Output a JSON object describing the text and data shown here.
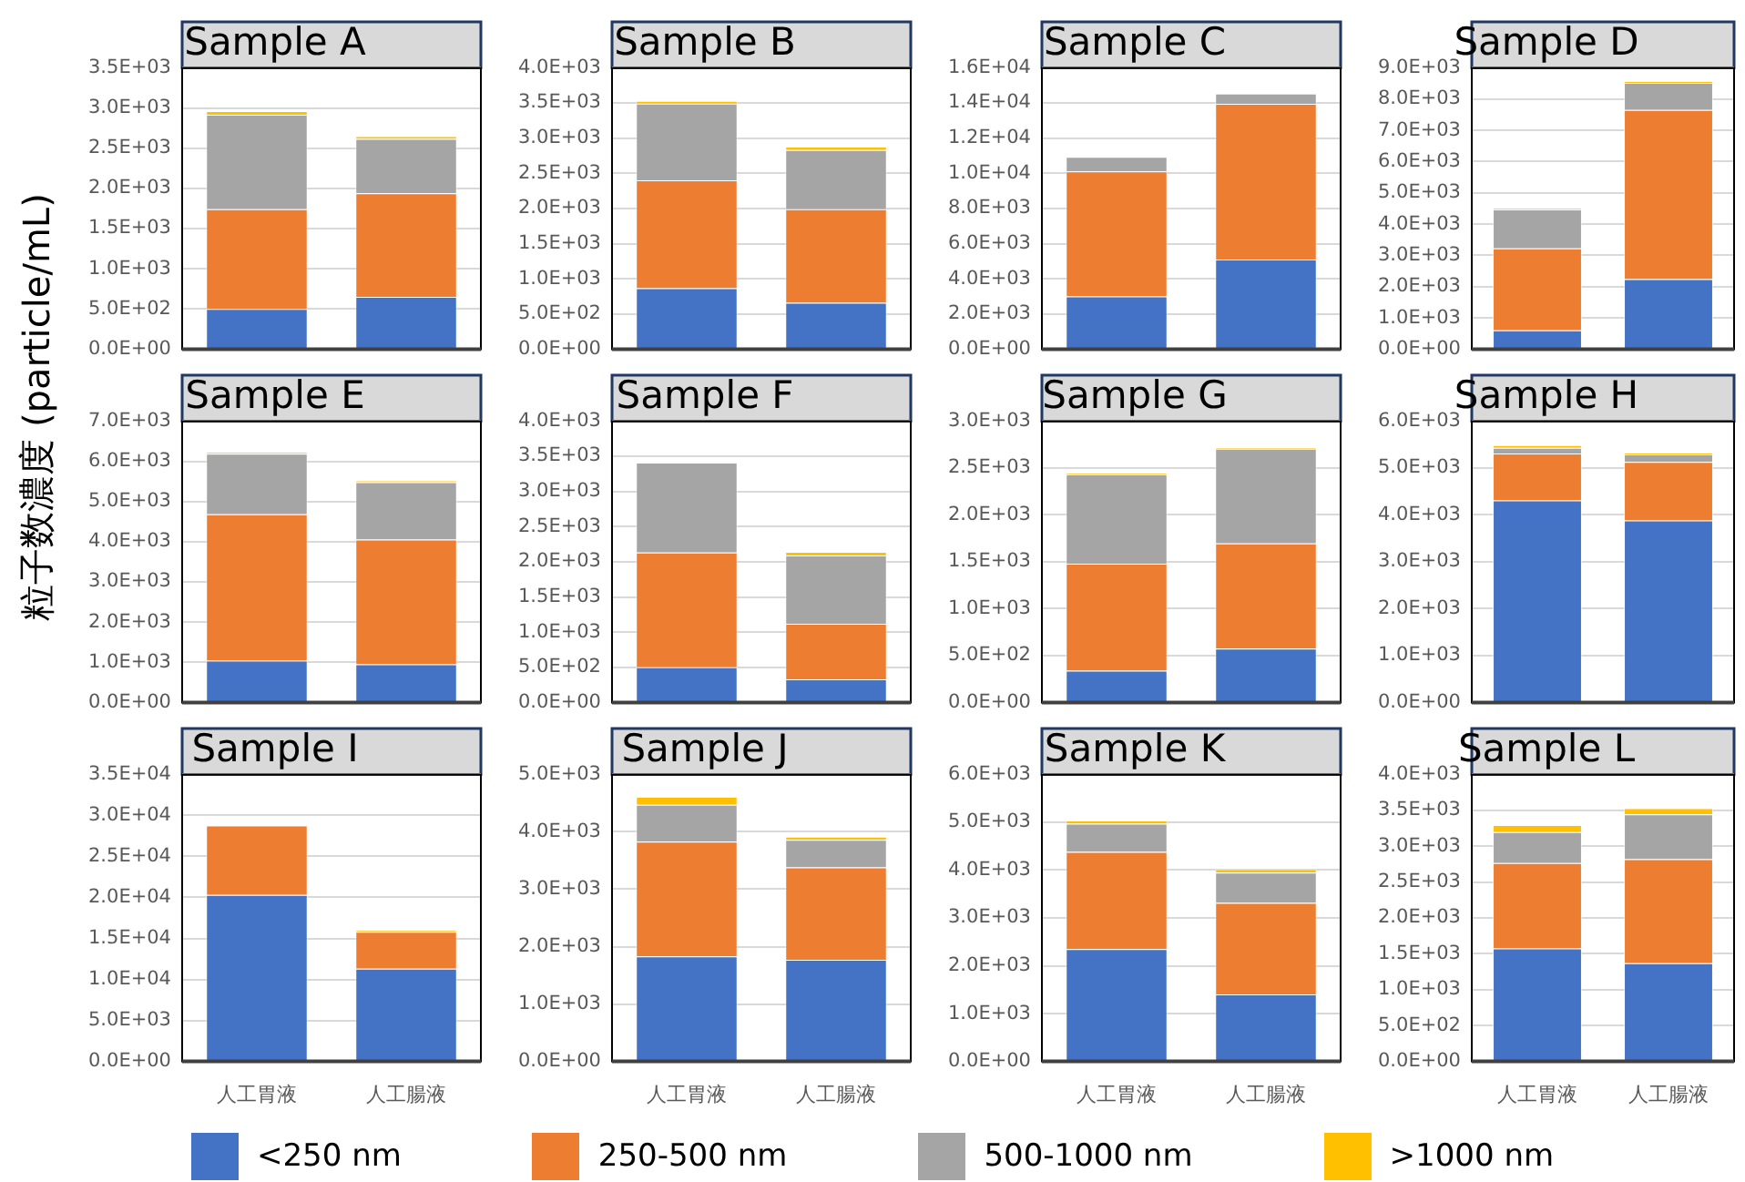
{
  "chart_data": [
    {
      "type": "bar",
      "title": "Sample A",
      "categories": [
        "人工胃液",
        "人工腸液"
      ],
      "stacked": true,
      "grid": "y",
      "legend": "bottom",
      "tick_labels": "y",
      "ylim": [
        0,
        3500
      ],
      "yticks": [
        {
          "value": 0,
          "label": "0.0E+00"
        },
        {
          "value": 500,
          "label": "5.0E+02"
        },
        {
          "value": 1000,
          "label": "1.0E+03"
        },
        {
          "value": 1500,
          "label": "1.5E+03"
        },
        {
          "value": 2000,
          "label": "2.0E+03"
        },
        {
          "value": 2500,
          "label": "2.5E+03"
        },
        {
          "value": 3000,
          "label": "3.0E+03"
        },
        {
          "value": 3500,
          "label": "3.5E+03"
        }
      ],
      "series": [
        {
          "name": "<250 nm",
          "color": "#4472c4",
          "values": [
            500,
            650
          ]
        },
        {
          "name": "250-500 nm",
          "color": "#ed7d31",
          "values": [
            1240,
            1290
          ]
        },
        {
          "name": "500-1000 nm",
          "color": "#a5a5a5",
          "values": [
            1175,
            675
          ]
        },
        {
          "name": ">1000 nm",
          "color": "#ffc000",
          "values": [
            45,
            35
          ]
        }
      ]
    },
    {
      "type": "bar",
      "title": "Sample B",
      "categories": [
        "人工胃液",
        "人工腸液"
      ],
      "stacked": true,
      "grid": "y",
      "legend": "bottom",
      "tick_labels": "y",
      "ylim": [
        0,
        4000
      ],
      "yticks": [
        {
          "value": 0,
          "label": "0.0E+00"
        },
        {
          "value": 500,
          "label": "5.0E+02"
        },
        {
          "value": 1000,
          "label": "1.0E+03"
        },
        {
          "value": 1500,
          "label": "1.5E+03"
        },
        {
          "value": 2000,
          "label": "2.0E+03"
        },
        {
          "value": 2500,
          "label": "2.5E+03"
        },
        {
          "value": 3000,
          "label": "3.0E+03"
        },
        {
          "value": 3500,
          "label": "3.5E+03"
        },
        {
          "value": 4000,
          "label": "4.0E+03"
        }
      ],
      "series": [
        {
          "name": "<250 nm",
          "color": "#4472c4",
          "values": [
            865,
            660
          ]
        },
        {
          "name": "250-500 nm",
          "color": "#ed7d31",
          "values": [
            1535,
            1330
          ]
        },
        {
          "name": "500-1000 nm",
          "color": "#a5a5a5",
          "values": [
            1090,
            840
          ]
        },
        {
          "name": ">1000 nm",
          "color": "#ffc000",
          "values": [
            40,
            50
          ]
        }
      ]
    },
    {
      "type": "bar",
      "title": "Sample C",
      "categories": [
        "人工胃液",
        "人工腸液"
      ],
      "stacked": true,
      "grid": "y",
      "legend": "bottom",
      "tick_labels": "y",
      "ylim": [
        0,
        16000
      ],
      "yticks": [
        {
          "value": 0,
          "label": "0.0E+00"
        },
        {
          "value": 2000,
          "label": "2.0E+03"
        },
        {
          "value": 4000,
          "label": "4.0E+03"
        },
        {
          "value": 6000,
          "label": "6.0E+03"
        },
        {
          "value": 8000,
          "label": "8.0E+03"
        },
        {
          "value": 10000,
          "label": "1.0E+04"
        },
        {
          "value": 12000,
          "label": "1.2E+04"
        },
        {
          "value": 14000,
          "label": "1.4E+04"
        },
        {
          "value": 16000,
          "label": "1.6E+04"
        }
      ],
      "series": [
        {
          "name": "<250 nm",
          "color": "#4472c4",
          "values": [
            3000,
            5100
          ]
        },
        {
          "name": "250-500 nm",
          "color": "#ed7d31",
          "values": [
            7100,
            8850
          ]
        },
        {
          "name": "500-1000 nm",
          "color": "#a5a5a5",
          "values": [
            830,
            580
          ]
        },
        {
          "name": ">1000 nm",
          "color": "#ffc000",
          "values": [
            0,
            0
          ]
        }
      ]
    },
    {
      "type": "bar",
      "title": "Sample D",
      "categories": [
        "人工胃液",
        "人工腸液"
      ],
      "stacked": true,
      "grid": "y",
      "legend": "bottom",
      "tick_labels": "y",
      "ylim": [
        0,
        9000
      ],
      "yticks": [
        {
          "value": 0,
          "label": "0.0E+00"
        },
        {
          "value": 1000,
          "label": "1.0E+03"
        },
        {
          "value": 2000,
          "label": "2.0E+03"
        },
        {
          "value": 3000,
          "label": "3.0E+03"
        },
        {
          "value": 4000,
          "label": "4.0E+03"
        },
        {
          "value": 5000,
          "label": "5.0E+03"
        },
        {
          "value": 6000,
          "label": "6.0E+03"
        },
        {
          "value": 7000,
          "label": "7.0E+03"
        },
        {
          "value": 8000,
          "label": "8.0E+03"
        },
        {
          "value": 9000,
          "label": "9.0E+03"
        }
      ],
      "series": [
        {
          "name": "<250 nm",
          "color": "#4472c4",
          "values": [
            600,
            2240
          ]
        },
        {
          "name": "250-500 nm",
          "color": "#ed7d31",
          "values": [
            2620,
            5410
          ]
        },
        {
          "name": "500-1000 nm",
          "color": "#a5a5a5",
          "values": [
            1250,
            870
          ]
        },
        {
          "name": ">1000 nm",
          "color": "#ffc000",
          "values": [
            40,
            50
          ]
        }
      ]
    },
    {
      "type": "bar",
      "title": "Sample E",
      "ylabel": "粒子数濃度 (particle/mL)",
      "categories": [
        "人工胃液",
        "人工腸液"
      ],
      "stacked": true,
      "grid": "y",
      "legend": "bottom",
      "tick_labels": "y",
      "ylim": [
        0,
        7000
      ],
      "yticks": [
        {
          "value": 0,
          "label": "0.0E+00"
        },
        {
          "value": 1000,
          "label": "1.0E+03"
        },
        {
          "value": 2000,
          "label": "2.0E+03"
        },
        {
          "value": 3000,
          "label": "3.0E+03"
        },
        {
          "value": 4000,
          "label": "4.0E+03"
        },
        {
          "value": 5000,
          "label": "5.0E+03"
        },
        {
          "value": 6000,
          "label": "6.0E+03"
        },
        {
          "value": 7000,
          "label": "7.0E+03"
        }
      ],
      "series": [
        {
          "name": "<250 nm",
          "color": "#4472c4",
          "values": [
            1040,
            950
          ]
        },
        {
          "name": "250-500 nm",
          "color": "#ed7d31",
          "values": [
            3640,
            3100
          ]
        },
        {
          "name": "500-1000 nm",
          "color": "#a5a5a5",
          "values": [
            1510,
            1430
          ]
        },
        {
          "name": ">1000 nm",
          "color": "#ffc000",
          "values": [
            40,
            45
          ]
        }
      ]
    },
    {
      "type": "bar",
      "title": "Sample F",
      "categories": [
        "人工胃液",
        "人工腸液"
      ],
      "stacked": true,
      "grid": "y",
      "legend": "bottom",
      "tick_labels": "y",
      "ylim": [
        0,
        4000
      ],
      "yticks": [
        {
          "value": 0,
          "label": "0.0E+00"
        },
        {
          "value": 500,
          "label": "5.0E+02"
        },
        {
          "value": 1000,
          "label": "1.0E+03"
        },
        {
          "value": 1500,
          "label": "1.5E+03"
        },
        {
          "value": 2000,
          "label": "2.0E+03"
        },
        {
          "value": 2500,
          "label": "2.5E+03"
        },
        {
          "value": 3000,
          "label": "3.0E+03"
        },
        {
          "value": 3500,
          "label": "3.5E+03"
        },
        {
          "value": 4000,
          "label": "4.0E+03"
        }
      ],
      "series": [
        {
          "name": "<250 nm",
          "color": "#4472c4",
          "values": [
            500,
            330
          ]
        },
        {
          "name": "250-500 nm",
          "color": "#ed7d31",
          "values": [
            1630,
            790
          ]
        },
        {
          "name": "500-1000 nm",
          "color": "#a5a5a5",
          "values": [
            1280,
            970
          ]
        },
        {
          "name": ">1000 nm",
          "color": "#ffc000",
          "values": [
            0,
            50
          ]
        }
      ]
    },
    {
      "type": "bar",
      "title": "Sample G",
      "categories": [
        "人工胃液",
        "人工腸液"
      ],
      "stacked": true,
      "grid": "y",
      "legend": "bottom",
      "tick_labels": "y",
      "ylim": [
        0,
        3000
      ],
      "yticks": [
        {
          "value": 0,
          "label": "0.0E+00"
        },
        {
          "value": 500,
          "label": "5.0E+02"
        },
        {
          "value": 1000,
          "label": "1.0E+03"
        },
        {
          "value": 1500,
          "label": "1.5E+03"
        },
        {
          "value": 2000,
          "label": "2.0E+03"
        },
        {
          "value": 2500,
          "label": "2.5E+03"
        },
        {
          "value": 3000,
          "label": "3.0E+03"
        }
      ],
      "series": [
        {
          "name": "<250 nm",
          "color": "#4472c4",
          "values": [
            340,
            575
          ]
        },
        {
          "name": "250-500 nm",
          "color": "#ed7d31",
          "values": [
            1140,
            1120
          ]
        },
        {
          "name": "500-1000 nm",
          "color": "#a5a5a5",
          "values": [
            950,
            1010
          ]
        },
        {
          "name": ">1000 nm",
          "color": "#ffc000",
          "values": [
            15,
            15
          ]
        }
      ]
    },
    {
      "type": "bar",
      "title": "Sample H",
      "categories": [
        "人工胃液",
        "人工腸液"
      ],
      "stacked": true,
      "grid": "y",
      "legend": "bottom",
      "tick_labels": "y",
      "ylim": [
        0,
        6000
      ],
      "yticks": [
        {
          "value": 0,
          "label": "0.0E+00"
        },
        {
          "value": 1000,
          "label": "1.0E+03"
        },
        {
          "value": 2000,
          "label": "2.0E+03"
        },
        {
          "value": 3000,
          "label": "3.0E+03"
        },
        {
          "value": 4000,
          "label": "4.0E+03"
        },
        {
          "value": 5000,
          "label": "5.0E+03"
        },
        {
          "value": 6000,
          "label": "6.0E+03"
        }
      ],
      "series": [
        {
          "name": "<250 nm",
          "color": "#4472c4",
          "values": [
            4310,
            3880
          ]
        },
        {
          "name": "250-500 nm",
          "color": "#ed7d31",
          "values": [
            1000,
            1250
          ]
        },
        {
          "name": "500-1000 nm",
          "color": "#a5a5a5",
          "values": [
            120,
            160
          ]
        },
        {
          "name": ">1000 nm",
          "color": "#ffc000",
          "values": [
            60,
            40
          ]
        }
      ]
    },
    {
      "type": "bar",
      "title": "Sample I",
      "categories": [
        "人工胃液",
        "人工腸液"
      ],
      "stacked": true,
      "grid": "y",
      "legend": "bottom",
      "ylim": [
        0,
        35000
      ],
      "yticks": [
        {
          "value": 0,
          "label": "0.0E+00"
        },
        {
          "value": 5000,
          "label": "5.0E+03"
        },
        {
          "value": 10000,
          "label": "1.0E+04"
        },
        {
          "value": 15000,
          "label": "1.5E+04"
        },
        {
          "value": 20000,
          "label": "2.0E+04"
        },
        {
          "value": 25000,
          "label": "2.5E+04"
        },
        {
          "value": 30000,
          "label": "3.0E+04"
        },
        {
          "value": 35000,
          "label": "3.5E+04"
        }
      ],
      "series": [
        {
          "name": "<250 nm",
          "color": "#4472c4",
          "values": [
            20300,
            11300
          ]
        },
        {
          "name": "250-500 nm",
          "color": "#ed7d31",
          "values": [
            8480,
            4500
          ]
        },
        {
          "name": "500-1000 nm",
          "color": "#a5a5a5",
          "values": [
            0,
            0
          ]
        },
        {
          "name": ">1000 nm",
          "color": "#ffc000",
          "values": [
            0,
            220
          ]
        }
      ]
    },
    {
      "type": "bar",
      "title": "Sample J",
      "categories": [
        "人工胃液",
        "人工腸液"
      ],
      "stacked": true,
      "grid": "y",
      "legend": "bottom",
      "ylim": [
        0,
        5000
      ],
      "yticks": [
        {
          "value": 0,
          "label": "0.0E+00"
        },
        {
          "value": 1000,
          "label": "1.0E+03"
        },
        {
          "value": 2000,
          "label": "2.0E+03"
        },
        {
          "value": 3000,
          "label": "3.0E+03"
        },
        {
          "value": 4000,
          "label": "4.0E+03"
        },
        {
          "value": 5000,
          "label": "5.0E+03"
        }
      ],
      "series": [
        {
          "name": "<250 nm",
          "color": "#4472c4",
          "values": [
            1830,
            1770
          ]
        },
        {
          "name": "250-500 nm",
          "color": "#ed7d31",
          "values": [
            2000,
            1610
          ]
        },
        {
          "name": "500-1000 nm",
          "color": "#a5a5a5",
          "values": [
            640,
            480
          ]
        },
        {
          "name": ">1000 nm",
          "color": "#ffc000",
          "values": [
            140,
            55
          ]
        }
      ]
    },
    {
      "type": "bar",
      "title": "Sample K",
      "categories": [
        "人工胃液",
        "人工腸液"
      ],
      "stacked": true,
      "grid": "y",
      "legend": "bottom",
      "ylim": [
        0,
        6000
      ],
      "yticks": [
        {
          "value": 0,
          "label": "0.0E+00"
        },
        {
          "value": 1000,
          "label": "1.0E+03"
        },
        {
          "value": 2000,
          "label": "2.0E+03"
        },
        {
          "value": 3000,
          "label": "3.0E+03"
        },
        {
          "value": 4000,
          "label": "4.0E+03"
        },
        {
          "value": 5000,
          "label": "5.0E+03"
        },
        {
          "value": 6000,
          "label": "6.0E+03"
        }
      ],
      "series": [
        {
          "name": "<250 nm",
          "color": "#4472c4",
          "values": [
            2350,
            1400
          ]
        },
        {
          "name": "250-500 nm",
          "color": "#ed7d31",
          "values": [
            2030,
            1915
          ]
        },
        {
          "name": "500-1000 nm",
          "color": "#a5a5a5",
          "values": [
            590,
            630
          ]
        },
        {
          "name": ">1000 nm",
          "color": "#ffc000",
          "values": [
            65,
            75
          ]
        }
      ]
    },
    {
      "type": "bar",
      "title": "Sample L",
      "categories": [
        "人工胃液",
        "人工腸液"
      ],
      "stacked": true,
      "grid": "y",
      "legend": "bottom",
      "ylim": [
        0,
        4000
      ],
      "yticks": [
        {
          "value": 0,
          "label": "0.0E+00"
        },
        {
          "value": 500,
          "label": "5.0E+02"
        },
        {
          "value": 1000,
          "label": "1.0E+03"
        },
        {
          "value": 1500,
          "label": "1.5E+03"
        },
        {
          "value": 2000,
          "label": "2.0E+03"
        },
        {
          "value": 2500,
          "label": "2.5E+03"
        },
        {
          "value": 3000,
          "label": "3.0E+03"
        },
        {
          "value": 3500,
          "label": "3.5E+03"
        },
        {
          "value": 4000,
          "label": "4.0E+03"
        }
      ],
      "series": [
        {
          "name": "<250 nm",
          "color": "#4472c4",
          "values": [
            1575,
            1370
          ]
        },
        {
          "name": "250-500 nm",
          "color": "#ed7d31",
          "values": [
            1190,
            1450
          ]
        },
        {
          "name": "500-1000 nm",
          "color": "#a5a5a5",
          "values": [
            430,
            625
          ]
        },
        {
          "name": ">1000 nm",
          "color": "#ffc000",
          "values": [
            100,
            85
          ]
        }
      ]
    }
  ]
}
